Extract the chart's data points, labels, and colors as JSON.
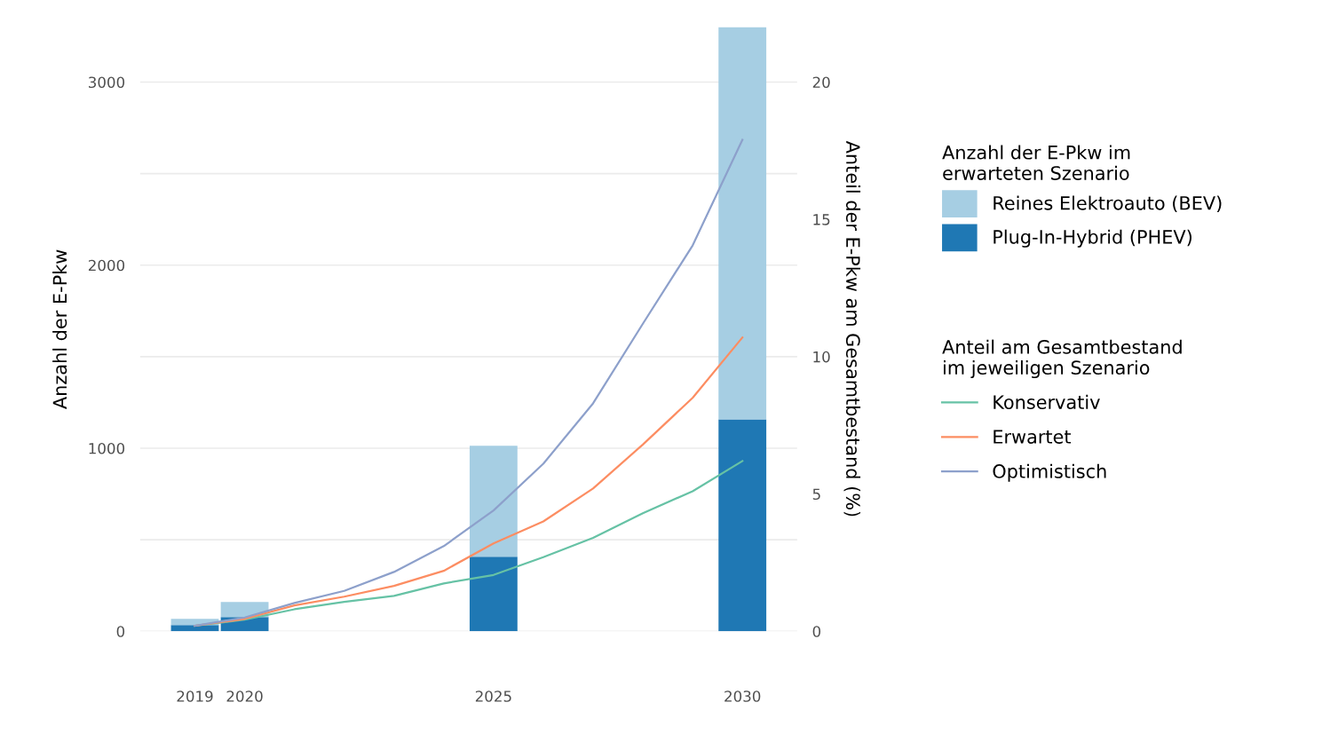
{
  "chart_data": {
    "type": "bar",
    "stacked": true,
    "x": [
      2019,
      2020,
      2025,
      2030
    ],
    "ylabel": "Anzahl der E-Pkw",
    "y2label": "Anteil der E-Pkw am Gesamtbestand (%)",
    "legend_title": [
      "Anzahl der E-Pkw im erwarteten Szenario",
      "Anteil am Gesamtbestand im jeweiligen Szenario"
    ],
    "series": [
      {
        "name": "Plug-In-Hybrid (PHEV)",
        "color": "#1f78b4",
        "values": [
          34,
          78,
          407,
          1158
        ]
      },
      {
        "name": "Reines Elektroauto (BEV)",
        "color": "#a6cee3",
        "values": [
          34,
          82,
          606,
          2142
        ]
      },
      {
        "name": "Konservativ",
        "type": "line",
        "axis": "y2",
        "color": "#66c2a5",
        "x": [
          2019,
          2020,
          2021,
          2022,
          2023,
          2024,
          2025,
          2026,
          2027,
          2028,
          2029,
          2030
        ],
        "values": [
          0.2,
          0.42,
          0.8,
          1.07,
          1.29,
          1.74,
          2.05,
          2.7,
          3.4,
          4.3,
          5.1,
          6.2
        ]
      },
      {
        "name": "Erwartet",
        "type": "line",
        "axis": "y2",
        "color": "#fc8d62",
        "x": [
          2019,
          2020,
          2021,
          2022,
          2023,
          2024,
          2025,
          2026,
          2027,
          2028,
          2029,
          2030
        ],
        "values": [
          0.2,
          0.45,
          0.94,
          1.26,
          1.65,
          2.2,
          3.2,
          4.0,
          5.2,
          6.8,
          8.5,
          10.7
        ]
      },
      {
        "name": "Optimistisch",
        "type": "line",
        "axis": "y2",
        "color": "#8da0cb",
        "x": [
          2019,
          2020,
          2021,
          2022,
          2023,
          2024,
          2025,
          2026,
          2027,
          2028,
          2029,
          2030
        ],
        "values": [
          0.2,
          0.5,
          1.03,
          1.47,
          2.16,
          3.1,
          4.4,
          6.1,
          8.3,
          11.2,
          14.05,
          17.9
        ]
      }
    ],
    "xlim": [
      2017.9,
      2031.1
    ],
    "xticks": [
      2019,
      2020,
      2025,
      2030
    ],
    "ylim": [
      0,
      3300
    ],
    "yticks": [
      0,
      {
        "value": 500,
        "label": null
      },
      1000,
      {
        "value": 1500,
        "label": null
      },
      2000,
      {
        "value": 2500,
        "label": null
      },
      3000
    ],
    "y2lim": [
      0,
      22
    ],
    "y2ticks": [
      0,
      5,
      10,
      15,
      20
    ],
    "grid": "y",
    "legend": "right",
    "line_style": "solid",
    "marker": "none"
  }
}
